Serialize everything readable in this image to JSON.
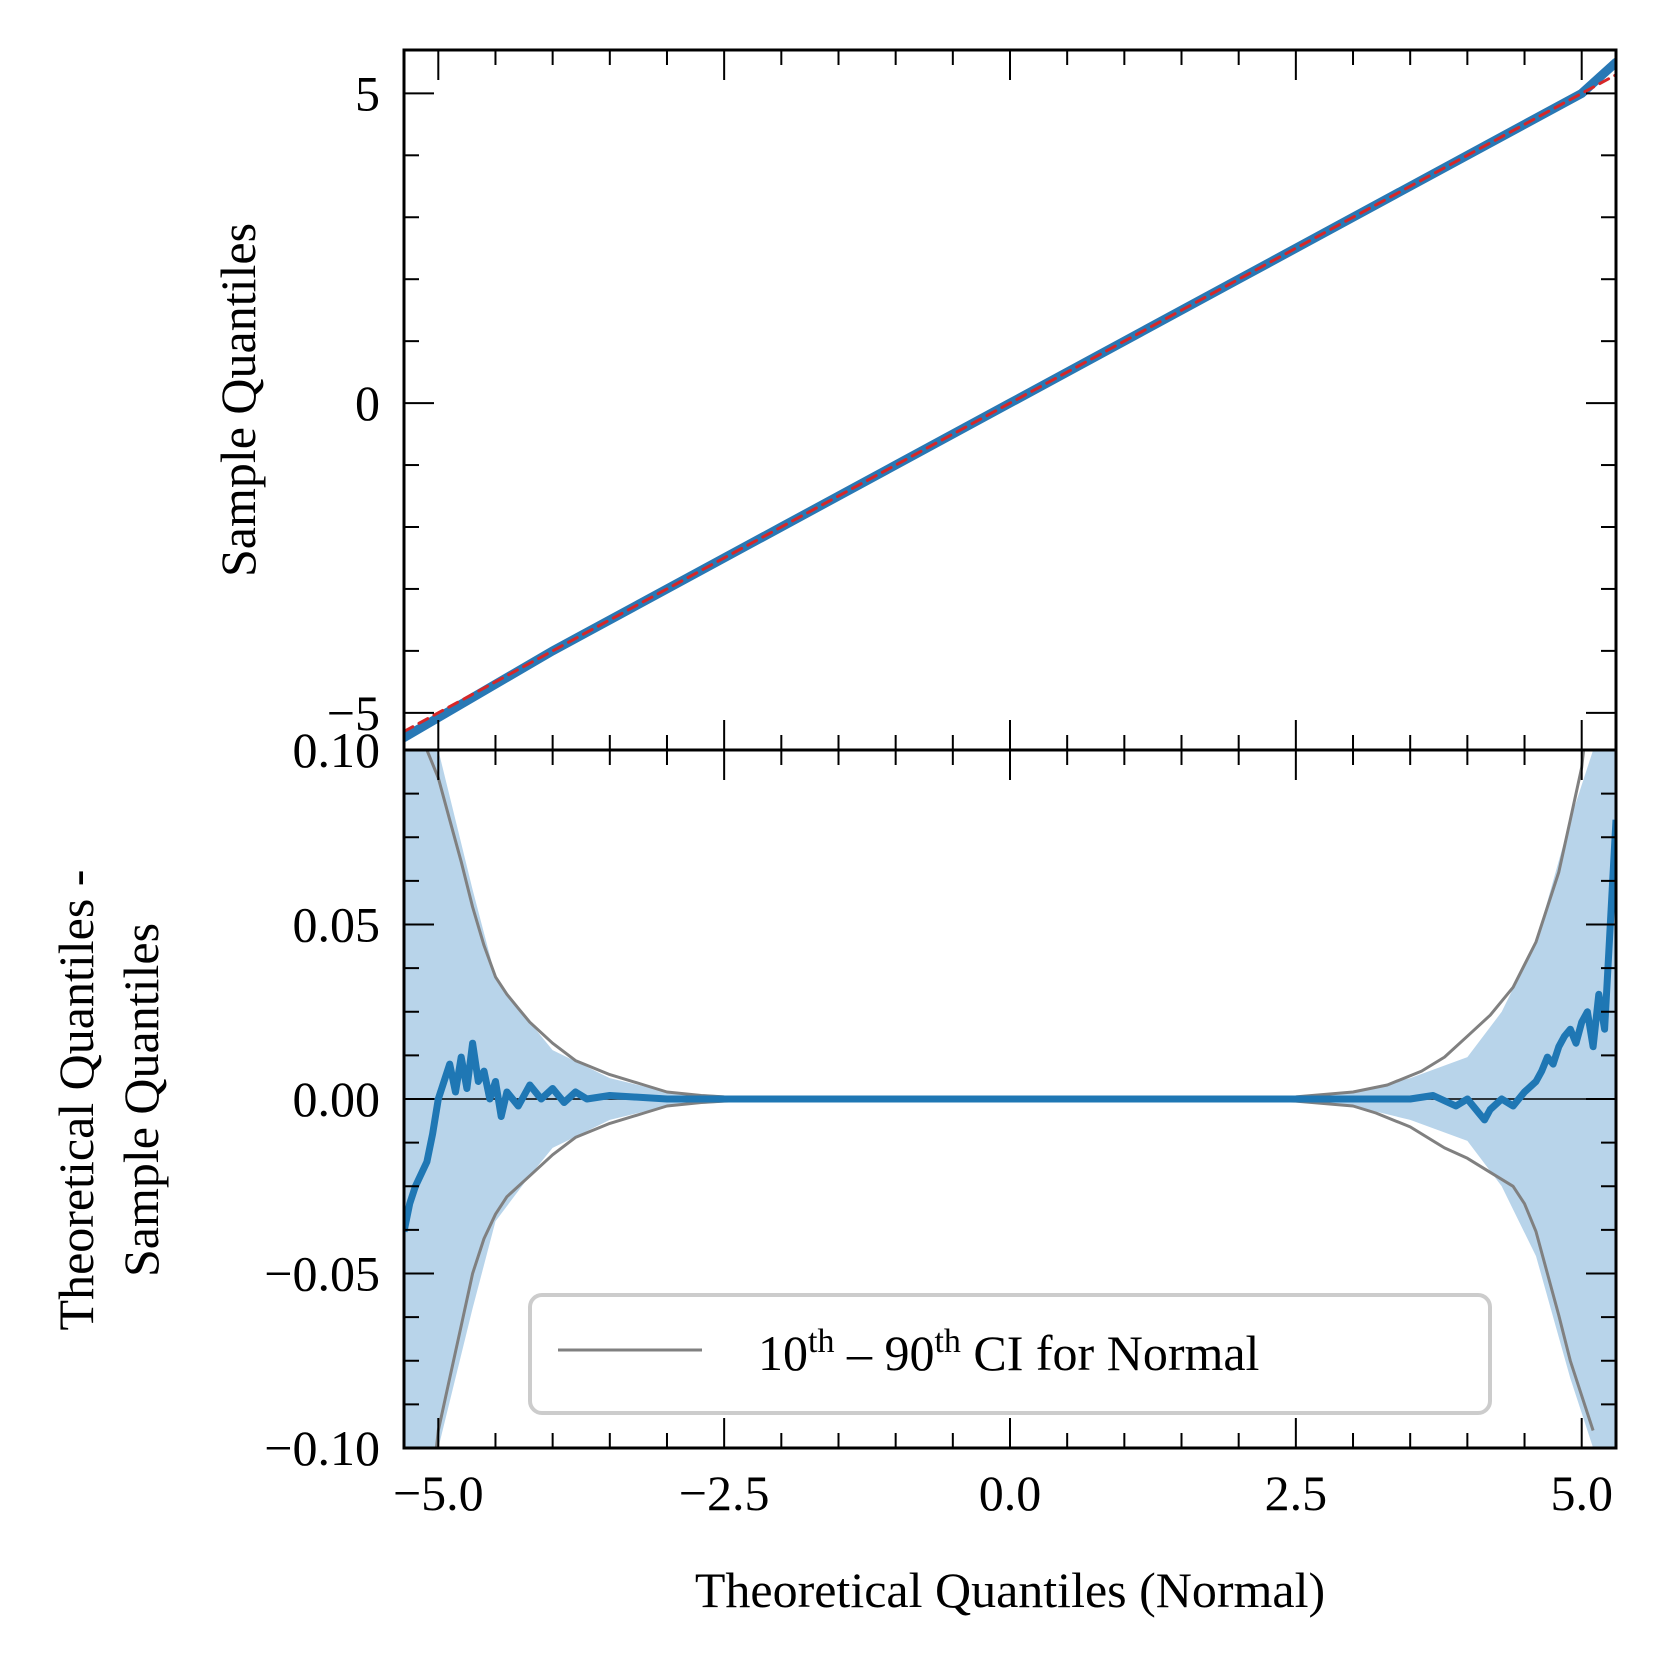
{
  "chart_data": [
    {
      "type": "line",
      "panel": "top",
      "title": "",
      "xlabel": "",
      "ylabel": "Sample Quantiles",
      "xlim": [
        -5.3,
        5.3
      ],
      "ylim": [
        -5.6,
        5.7
      ],
      "yticks": [
        5,
        0,
        -5
      ],
      "ytick_labels": [
        "5",
        "0",
        "−5"
      ],
      "series": [
        {
          "name": "Sample quantiles",
          "color": "#2878b5",
          "x": [
            -5.3,
            -4.0,
            -2.0,
            0.0,
            2.0,
            4.0,
            5.0,
            5.3
          ],
          "y": [
            -5.4,
            -4.0,
            -2.0,
            0.0,
            2.0,
            4.0,
            5.0,
            5.5
          ]
        },
        {
          "name": "Reference line",
          "color": "#d62728",
          "style": "dashed",
          "x": [
            -5.3,
            5.3
          ],
          "y": [
            -5.3,
            5.3
          ]
        }
      ]
    },
    {
      "type": "line",
      "panel": "bottom",
      "title": "",
      "xlabel": "Theoretical Quantiles (Normal)",
      "ylabel_line1": "Theoretical Quantiles -",
      "ylabel_line2": "Sample Quantiles",
      "xlim": [
        -5.3,
        5.3
      ],
      "ylim": [
        -0.1,
        0.1
      ],
      "xticks": [
        -5.0,
        -2.5,
        0.0,
        2.5,
        5.0
      ],
      "xtick_labels": [
        "−5.0",
        "−2.5",
        "0.0",
        "2.5",
        "5.0"
      ],
      "yticks": [
        0.1,
        0.05,
        0.0,
        -0.05,
        -0.1
      ],
      "ytick_labels": [
        "0.10",
        "0.05",
        "0.00",
        "−0.05",
        "−0.10"
      ],
      "band": {
        "name": "confidence band",
        "color": "#b8d4ea",
        "x": [
          -5.3,
          -5.0,
          -4.7,
          -4.5,
          -4.2,
          -4.0,
          -3.5,
          -3.0,
          -2.5,
          -2.0,
          2.0,
          2.5,
          3.0,
          3.5,
          4.0,
          4.3,
          4.6,
          4.9,
          5.3
        ],
        "upper": [
          0.12,
          0.1,
          0.06,
          0.035,
          0.022,
          0.014,
          0.006,
          0.002,
          0.001,
          0.0005,
          0.0005,
          0.001,
          0.002,
          0.006,
          0.012,
          0.025,
          0.045,
          0.08,
          0.12
        ],
        "lower": [
          -0.12,
          -0.1,
          -0.06,
          -0.035,
          -0.022,
          -0.014,
          -0.006,
          -0.002,
          -0.001,
          -0.0005,
          -0.0005,
          -0.001,
          -0.002,
          -0.006,
          -0.012,
          -0.025,
          -0.045,
          -0.08,
          -0.12
        ]
      },
      "series": [
        {
          "name": "CI upper",
          "color": "#808080",
          "x": [
            -5.3,
            -5.2,
            -5.1,
            -5.0,
            -4.9,
            -4.8,
            -4.7,
            -4.6,
            -4.5,
            -4.4,
            -4.3,
            -4.2,
            -4.0,
            -3.8,
            -3.5,
            -3.2,
            -3.0,
            -2.7,
            -2.5,
            -2.0,
            2.0,
            2.5,
            3.0,
            3.3,
            3.6,
            3.8,
            4.0,
            4.2,
            4.4,
            4.6,
            4.8,
            4.9,
            5.0,
            5.05
          ],
          "y": [
            0.115,
            0.11,
            0.1,
            0.092,
            0.08,
            0.068,
            0.055,
            0.044,
            0.035,
            0.03,
            0.026,
            0.022,
            0.016,
            0.011,
            0.007,
            0.004,
            0.002,
            0.001,
            0.0006,
            0.0002,
            0.0002,
            0.0006,
            0.002,
            0.004,
            0.008,
            0.012,
            0.018,
            0.024,
            0.032,
            0.045,
            0.065,
            0.08,
            0.095,
            0.11
          ]
        },
        {
          "name": "CI lower",
          "color": "#808080",
          "x": [
            -5.05,
            -5.0,
            -4.9,
            -4.8,
            -4.7,
            -4.6,
            -4.5,
            -4.4,
            -4.2,
            -4.0,
            -3.8,
            -3.5,
            -3.2,
            -3.0,
            -2.7,
            -2.5,
            -2.0,
            2.0,
            2.5,
            3.0,
            3.2,
            3.5,
            3.8,
            4.0,
            4.2,
            4.4,
            4.5,
            4.6,
            4.7,
            4.8,
            4.9,
            5.0,
            5.1
          ],
          "y": [
            -0.11,
            -0.095,
            -0.08,
            -0.065,
            -0.05,
            -0.04,
            -0.033,
            -0.028,
            -0.022,
            -0.016,
            -0.011,
            -0.007,
            -0.004,
            -0.002,
            -0.001,
            -0.0006,
            -0.0002,
            -0.0002,
            -0.0006,
            -0.002,
            -0.004,
            -0.008,
            -0.014,
            -0.017,
            -0.021,
            -0.025,
            -0.03,
            -0.038,
            -0.05,
            -0.062,
            -0.075,
            -0.085,
            -0.095
          ]
        },
        {
          "name": "Residual",
          "color": "#1f77b4",
          "x": [
            -5.3,
            -5.25,
            -5.2,
            -5.1,
            -5.05,
            -5.0,
            -4.95,
            -4.9,
            -4.85,
            -4.8,
            -4.75,
            -4.7,
            -4.65,
            -4.6,
            -4.55,
            -4.5,
            -4.45,
            -4.4,
            -4.3,
            -4.2,
            -4.1,
            -4.0,
            -3.9,
            -3.8,
            -3.7,
            -3.5,
            -3.0,
            -2.5,
            0.0,
            2.5,
            3.0,
            3.5,
            3.7,
            3.9,
            4.0,
            4.1,
            4.15,
            4.2,
            4.3,
            4.4,
            4.5,
            4.6,
            4.65,
            4.7,
            4.75,
            4.8,
            4.85,
            4.9,
            4.95,
            5.0,
            5.05,
            5.1,
            5.15,
            5.2,
            5.25,
            5.3
          ],
          "y": [
            -0.038,
            -0.03,
            -0.025,
            -0.018,
            -0.01,
            0.0,
            0.005,
            0.01,
            0.002,
            0.012,
            0.003,
            0.016,
            0.005,
            0.008,
            0.0,
            0.005,
            -0.005,
            0.002,
            -0.002,
            0.004,
            0.0,
            0.003,
            -0.001,
            0.002,
            0.0,
            0.001,
            0.0,
            0.0,
            0.0,
            0.0,
            0.0,
            0.0,
            0.001,
            -0.002,
            0.0,
            -0.004,
            -0.006,
            -0.003,
            0.0,
            -0.002,
            0.002,
            0.005,
            0.008,
            0.012,
            0.01,
            0.015,
            0.018,
            0.02,
            0.016,
            0.022,
            0.025,
            0.015,
            0.03,
            0.02,
            0.05,
            0.08
          ]
        }
      ]
    }
  ],
  "legend": {
    "position": "lower-center",
    "base1": "10",
    "sup1": "th",
    "dash": " – ",
    "base2": "90",
    "sup2": "th",
    "rest": " CI for Normal"
  }
}
